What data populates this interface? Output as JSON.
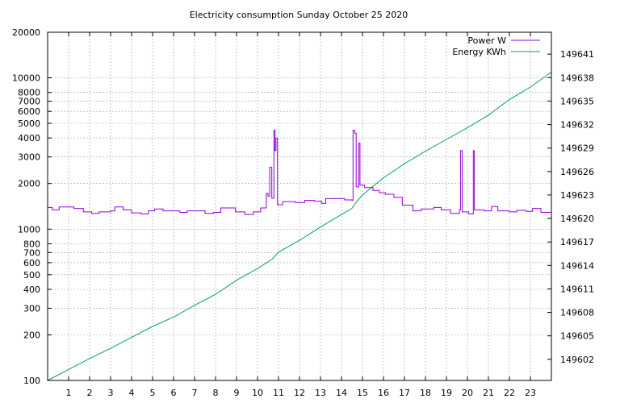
{
  "chart_data": {
    "type": "line",
    "title": "Electricity consumption Sunday October 25 2020",
    "xlabel": "",
    "ylabel": "",
    "y2label": "",
    "grid": true,
    "legend_position": "top-right",
    "xlim": [
      0,
      24
    ],
    "ylim": [
      100,
      20000
    ],
    "ylog": true,
    "y2lim": [
      149599.3,
      149643.8
    ],
    "x_ticks": [
      1,
      2,
      3,
      4,
      5,
      6,
      7,
      8,
      9,
      10,
      11,
      12,
      13,
      14,
      15,
      16,
      17,
      18,
      19,
      20,
      21,
      22,
      23
    ],
    "y_ticks": [
      100,
      200,
      300,
      400,
      500,
      600,
      700,
      800,
      1000,
      2000,
      3000,
      4000,
      5000,
      6000,
      7000,
      8000,
      10000,
      20000
    ],
    "y_tick_labels": [
      "100",
      "200",
      "300",
      "400",
      "500",
      "600",
      "700",
      "800",
      "1000",
      "2000",
      "3000",
      "4000",
      "5000",
      "6000",
      "7000",
      "8000",
      "10000",
      "20000"
    ],
    "y2_ticks": [
      149602,
      149605,
      149608,
      149611,
      149614,
      149617,
      149620,
      149623,
      149626,
      149629,
      149632,
      149635,
      149638,
      149641
    ],
    "series": [
      {
        "name": "Power W",
        "axis": "left",
        "color": "#9400d3",
        "step": true,
        "points": [
          [
            0,
            1390
          ],
          [
            0.22,
            1340
          ],
          [
            0.55,
            1400
          ],
          [
            1.25,
            1370
          ],
          [
            1.7,
            1300
          ],
          [
            2.1,
            1270
          ],
          [
            2.45,
            1300
          ],
          [
            3.0,
            1320
          ],
          [
            3.2,
            1400
          ],
          [
            3.6,
            1340
          ],
          [
            4.0,
            1280
          ],
          [
            4.45,
            1260
          ],
          [
            4.8,
            1320
          ],
          [
            5.1,
            1360
          ],
          [
            5.5,
            1320
          ],
          [
            6.3,
            1290
          ],
          [
            6.65,
            1320
          ],
          [
            7.5,
            1270
          ],
          [
            7.9,
            1290
          ],
          [
            8.25,
            1380
          ],
          [
            8.95,
            1300
          ],
          [
            9.4,
            1250
          ],
          [
            9.8,
            1300
          ],
          [
            10.15,
            1380
          ],
          [
            10.42,
            1720
          ],
          [
            10.5,
            1650
          ],
          [
            10.58,
            2560
          ],
          [
            10.68,
            1600
          ],
          [
            10.78,
            4500
          ],
          [
            10.83,
            3300
          ],
          [
            10.88,
            4000
          ],
          [
            10.95,
            1450
          ],
          [
            11.2,
            1520
          ],
          [
            11.8,
            1500
          ],
          [
            12.25,
            1550
          ],
          [
            12.7,
            1530
          ],
          [
            13.05,
            1480
          ],
          [
            13.25,
            1590
          ],
          [
            14.15,
            1560
          ],
          [
            14.5,
            1550
          ],
          [
            14.55,
            4500
          ],
          [
            14.63,
            4300
          ],
          [
            14.7,
            1900
          ],
          [
            14.82,
            3700
          ],
          [
            14.88,
            1950
          ],
          [
            15.1,
            1880
          ],
          [
            15.5,
            1800
          ],
          [
            15.8,
            1740
          ],
          [
            16.1,
            1700
          ],
          [
            16.5,
            1620
          ],
          [
            16.9,
            1440
          ],
          [
            17.4,
            1320
          ],
          [
            17.8,
            1360
          ],
          [
            18.4,
            1390
          ],
          [
            18.75,
            1340
          ],
          [
            19.2,
            1270
          ],
          [
            19.62,
            1340
          ],
          [
            19.67,
            3300
          ],
          [
            19.75,
            1300
          ],
          [
            20.05,
            1260
          ],
          [
            20.28,
            3300
          ],
          [
            20.33,
            1340
          ],
          [
            20.8,
            1320
          ],
          [
            21.15,
            1410
          ],
          [
            21.45,
            1320
          ],
          [
            22.0,
            1300
          ],
          [
            22.35,
            1330
          ],
          [
            22.8,
            1310
          ],
          [
            23.1,
            1370
          ],
          [
            23.5,
            1290
          ],
          [
            24.0,
            1290
          ]
        ]
      },
      {
        "name": "Energy KWh",
        "axis": "right",
        "color": "#009e73",
        "step": false,
        "points": [
          [
            0,
            149599.3
          ],
          [
            1,
            149600.7
          ],
          [
            2,
            149602.1
          ],
          [
            3,
            149603.4
          ],
          [
            4,
            149604.8
          ],
          [
            5,
            149606.2
          ],
          [
            6,
            149607.4
          ],
          [
            7,
            149608.9
          ],
          [
            8,
            149610.3
          ],
          [
            9,
            149612.1
          ],
          [
            10,
            149613.6
          ],
          [
            10.7,
            149614.8
          ],
          [
            11,
            149615.7
          ],
          [
            12,
            149617.2
          ],
          [
            13,
            149618.9
          ],
          [
            14,
            149620.5
          ],
          [
            14.5,
            149621.3
          ],
          [
            14.7,
            149622.1
          ],
          [
            15,
            149623.0
          ],
          [
            16,
            149625.2
          ],
          [
            17,
            149627.0
          ],
          [
            18,
            149628.6
          ],
          [
            19,
            149630.1
          ],
          [
            20,
            149631.6
          ],
          [
            21,
            149633.2
          ],
          [
            22,
            149635.2
          ],
          [
            23,
            149636.8
          ],
          [
            24,
            149638.7
          ]
        ]
      }
    ]
  }
}
